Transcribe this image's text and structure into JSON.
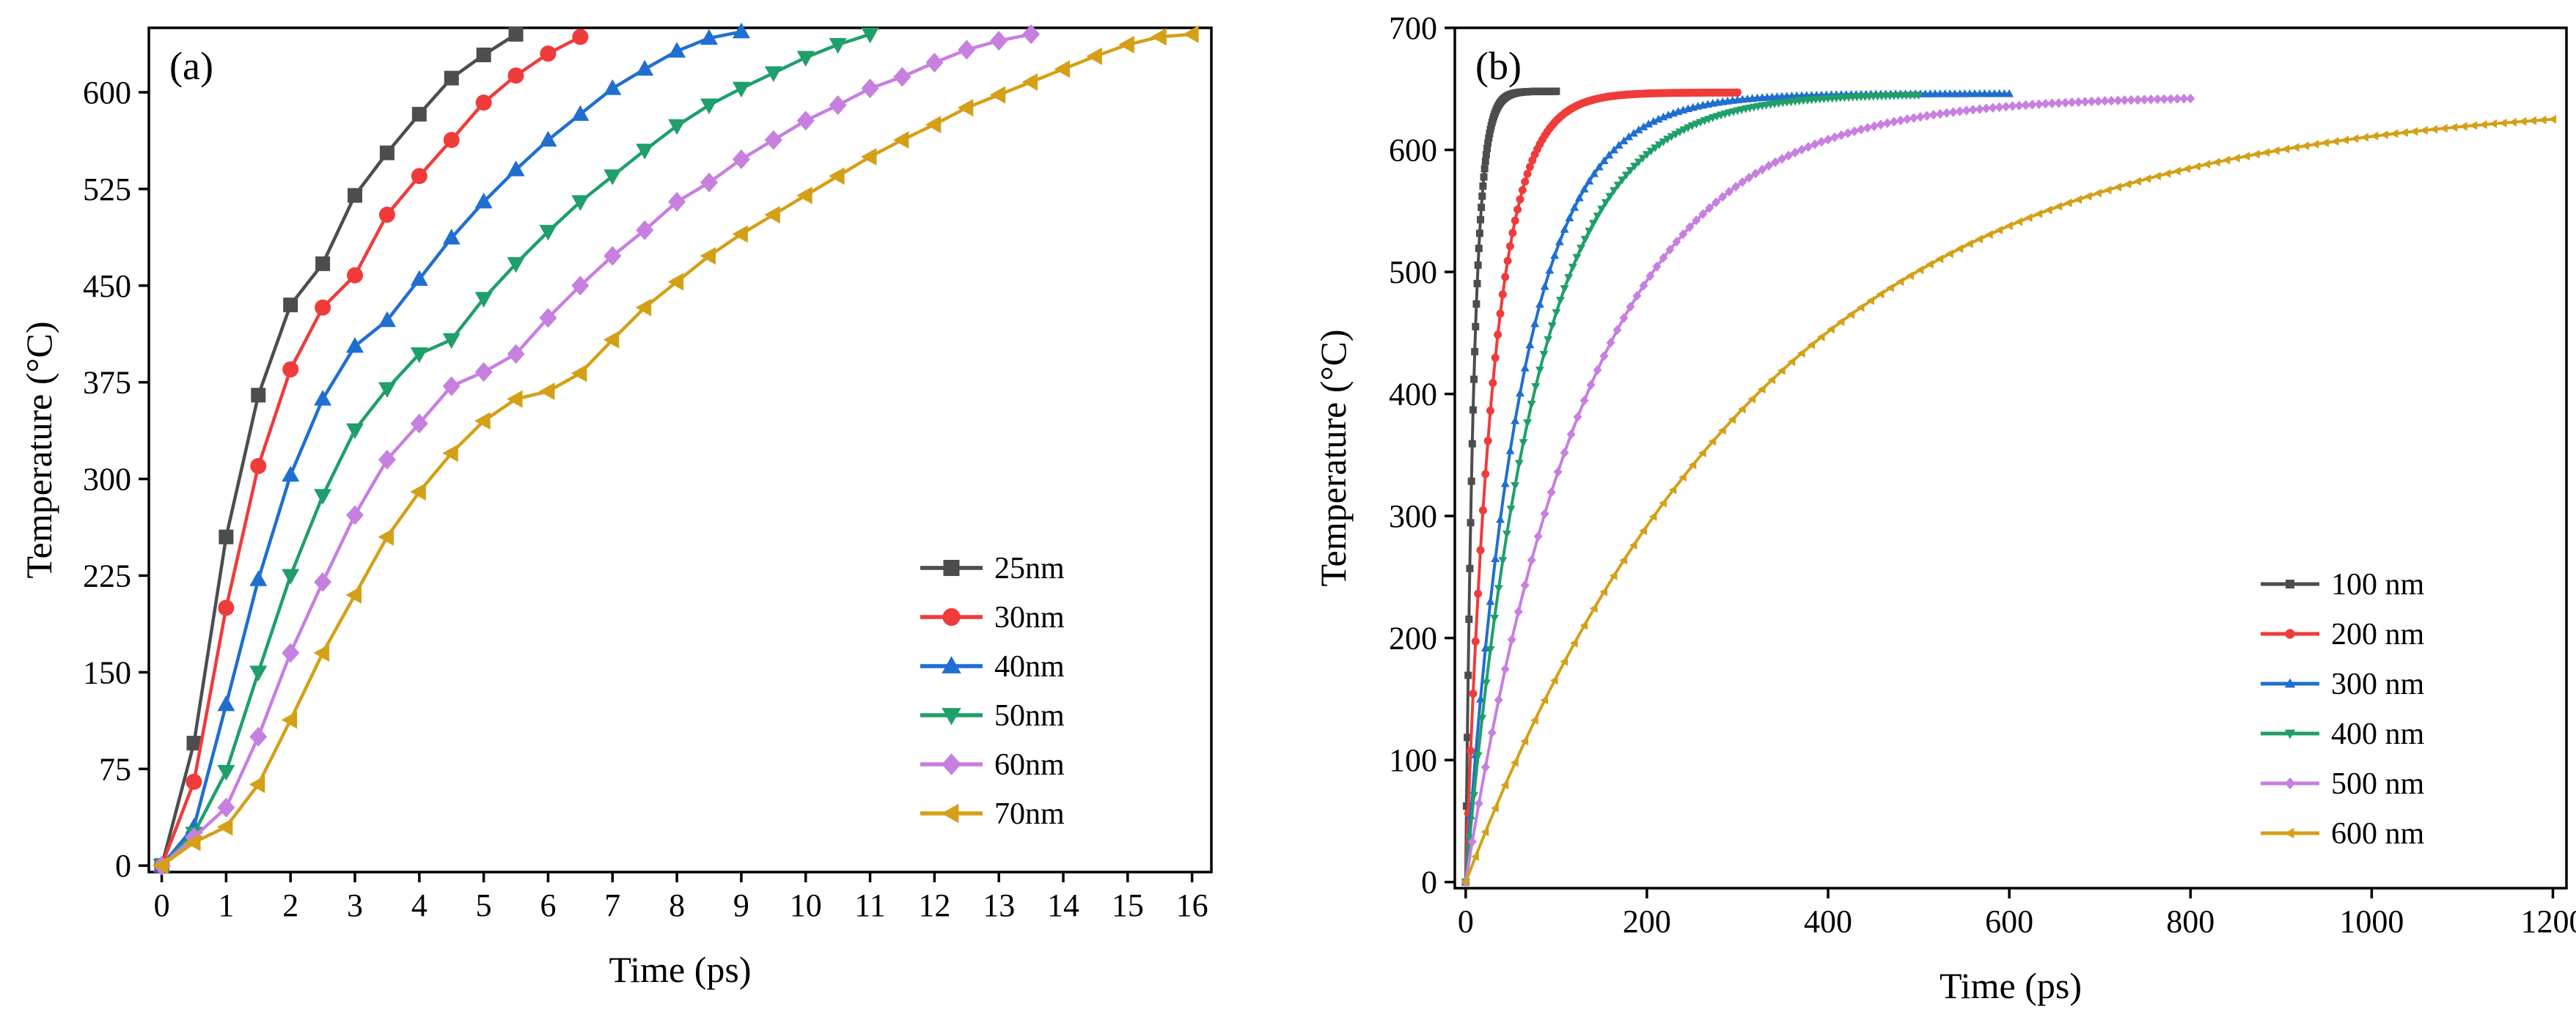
{
  "chart_data": [
    {
      "type": "line",
      "panel_label": "(a)",
      "title": "",
      "xlabel": "Time (ps)",
      "ylabel": "Temperature  (°C)",
      "xlim": [
        -0.2,
        16.3
      ],
      "ylim": [
        -5,
        650
      ],
      "x_ticks": [
        0,
        1,
        2,
        3,
        4,
        5,
        6,
        7,
        8,
        9,
        10,
        11,
        12,
        13,
        14,
        15,
        16
      ],
      "y_ticks": [
        0,
        75,
        150,
        225,
        300,
        375,
        450,
        525,
        600
      ],
      "legend_position": "bottom-right",
      "series": [
        {
          "name": "25nm",
          "color": "#4d4d4d",
          "marker": "square",
          "x": [
            0,
            0.5,
            1,
            1.5,
            2,
            2.5,
            3,
            3.5,
            4,
            4.5,
            5,
            5.5
          ],
          "y": [
            0,
            95,
            255,
            365,
            435,
            467,
            520,
            553,
            583,
            611,
            629,
            645
          ]
        },
        {
          "name": "30nm",
          "color": "#f03b3b",
          "marker": "circle",
          "x": [
            0,
            0.5,
            1,
            1.5,
            2,
            2.5,
            3,
            3.5,
            4,
            4.5,
            5,
            5.5,
            6,
            6.5
          ],
          "y": [
            0,
            65,
            200,
            310,
            385,
            433,
            458,
            505,
            535,
            563,
            592,
            613,
            630,
            643
          ]
        },
        {
          "name": "40nm",
          "color": "#1f6fd1",
          "marker": "triangle-up",
          "x": [
            0,
            0.5,
            1,
            1.5,
            2,
            2.5,
            3,
            3.5,
            4,
            4.5,
            5,
            5.5,
            6,
            6.5,
            7,
            7.5,
            8,
            8.5,
            9
          ],
          "y": [
            0,
            30,
            125,
            222,
            303,
            362,
            403,
            423,
            455,
            487,
            515,
            540,
            563,
            583,
            603,
            618,
            632,
            642,
            647
          ]
        },
        {
          "name": "50nm",
          "color": "#1f9f6a",
          "marker": "triangle-down",
          "x": [
            0,
            0.5,
            1,
            1.5,
            2,
            2.5,
            3,
            3.5,
            4,
            4.5,
            5,
            5.5,
            6,
            6.5,
            7,
            7.5,
            8,
            8.5,
            9,
            9.5,
            10,
            10.5,
            11
          ],
          "y": [
            0,
            25,
            73,
            150,
            225,
            287,
            338,
            370,
            397,
            408,
            440,
            467,
            492,
            515,
            535,
            555,
            574,
            590,
            603,
            615,
            627,
            637,
            645
          ]
        },
        {
          "name": "60nm",
          "color": "#c77fe0",
          "marker": "diamond",
          "x": [
            0,
            0.5,
            1,
            1.5,
            2,
            2.5,
            3,
            3.5,
            4,
            4.5,
            5,
            5.5,
            6,
            6.5,
            7,
            7.5,
            8,
            8.5,
            9,
            9.5,
            10,
            10.5,
            11,
            11.5,
            12,
            12.5,
            13,
            13.5
          ],
          "y": [
            0,
            22,
            45,
            100,
            165,
            220,
            272,
            315,
            343,
            372,
            383,
            397,
            425,
            450,
            473,
            493,
            515,
            530,
            548,
            563,
            578,
            590,
            603,
            612,
            623,
            633,
            640,
            645
          ]
        },
        {
          "name": "70nm",
          "color": "#d4a017",
          "marker": "triangle-left",
          "x": [
            0,
            0.5,
            1,
            1.5,
            2,
            2.5,
            3,
            3.5,
            4,
            4.5,
            5,
            5.5,
            6,
            6.5,
            7,
            7.5,
            8,
            8.5,
            9,
            9.5,
            10,
            10.5,
            11,
            11.5,
            12,
            12.5,
            13,
            13.5,
            14,
            14.5,
            15,
            15.5,
            16
          ],
          "y": [
            0,
            18,
            30,
            63,
            113,
            165,
            210,
            255,
            290,
            320,
            345,
            362,
            368,
            382,
            408,
            433,
            453,
            473,
            490,
            505,
            520,
            535,
            550,
            563,
            575,
            588,
            598,
            608,
            618,
            628,
            637,
            643,
            645
          ]
        }
      ]
    },
    {
      "type": "line",
      "panel_label": "(b)",
      "title": "",
      "xlabel": "Time (ps)",
      "ylabel": "Temperature (°C)",
      "xlim": [
        -12,
        1215
      ],
      "ylim": [
        -5,
        700
      ],
      "x_ticks": [
        0,
        200,
        400,
        600,
        800,
        1000,
        1200
      ],
      "y_ticks": [
        0,
        100,
        200,
        300,
        400,
        500,
        600,
        700
      ],
      "legend_position": "bottom-right",
      "series": [
        {
          "name": "100 nm",
          "color": "#4d4d4d",
          "marker": "square",
          "t_end": 100,
          "tau": 9,
          "T_max": 648
        },
        {
          "name": "200 nm",
          "color": "#f03b3b",
          "marker": "circle",
          "t_end": 300,
          "tau": 30,
          "T_max": 647
        },
        {
          "name": "300 nm",
          "color": "#1f6fd1",
          "marker": "triangle-up",
          "t_end": 600,
          "tau": 62,
          "T_max": 646
        },
        {
          "name": "400 nm",
          "color": "#1f9f6a",
          "marker": "triangle-down",
          "t_end": 500,
          "tau": 78,
          "T_max": 646
        },
        {
          "name": "500 nm",
          "color": "#c77fe0",
          "marker": "diamond",
          "t_end": 800,
          "tau": 138,
          "T_max": 644
        },
        {
          "name": "600 nm",
          "color": "#d4a017",
          "marker": "triangle-left",
          "t_end": 1200,
          "tau": 330,
          "T_max": 642
        }
      ]
    }
  ]
}
